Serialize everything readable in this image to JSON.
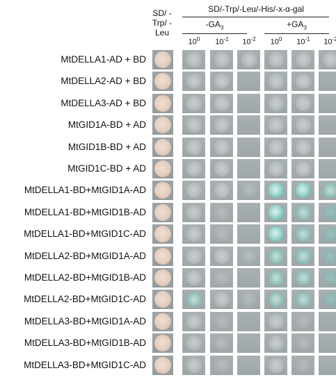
{
  "header": {
    "sd_title": "SD/ -Trp/ -Leu",
    "x_title": "SD/-Trp/-Leu/-His/-x-α-gal",
    "ga_minus": "-GA",
    "ga_plus": "+GA",
    "ga_sub": "3",
    "dilutions": [
      {
        "base": "10",
        "exp": "0"
      },
      {
        "base": "10",
        "exp": "-1"
      },
      {
        "base": "10",
        "exp": "-2"
      }
    ]
  },
  "rows": [
    {
      "label": "MtDELLA1-AD + BD",
      "growth": [
        "faint",
        "faint",
        "faint",
        "faint",
        "faint",
        "faint"
      ]
    },
    {
      "label": "MtDELLA2-AD + BD",
      "growth": [
        "faint",
        "faint",
        "none",
        "faint",
        "faint",
        "none"
      ]
    },
    {
      "label": "MtDELLA3-AD + BD",
      "growth": [
        "faint",
        "faint",
        "none",
        "faint",
        "faint",
        "none"
      ]
    },
    {
      "label": "MtGID1A-BD + AD",
      "growth": [
        "faint",
        "faint",
        "none",
        "faint",
        "faint",
        "none"
      ]
    },
    {
      "label": "MtGID1B-BD + AD",
      "growth": [
        "faint",
        "faint",
        "none",
        "faint",
        "faint",
        "none"
      ]
    },
    {
      "label": "MtGID1C-BD + AD",
      "growth": [
        "faint",
        "faint",
        "none",
        "faint",
        "faint",
        "none"
      ]
    },
    {
      "label": "MtDELLA1-BD+MtGID1A-AD",
      "growth": [
        "faint",
        "faint",
        "weak",
        "blue",
        "blue",
        "blue-mid"
      ]
    },
    {
      "label": "MtDELLA1-BD+MtGID1B-AD",
      "growth": [
        "faint",
        "weak",
        "none",
        "blue",
        "blue-mid",
        "blue-weak"
      ]
    },
    {
      "label": "MtDELLA1-BD+MtGID1C-AD",
      "growth": [
        "faint",
        "weak",
        "none",
        "blue",
        "blue-mid",
        "blue-weak"
      ]
    },
    {
      "label": "MtDELLA2-BD+MtGID1A-AD",
      "growth": [
        "faint",
        "faint",
        "weak",
        "blue-mid",
        "blue-mid",
        "blue-weak"
      ]
    },
    {
      "label": "MtDELLA2-BD+MtGID1B-AD",
      "growth": [
        "faint",
        "weak",
        "none",
        "blue-mid",
        "blue-mid",
        "blue-weak"
      ]
    },
    {
      "label": "MtDELLA2-BD+MtGID1C-AD",
      "growth": [
        "blue-mid",
        "faint",
        "weak",
        "blue-mid",
        "blue-mid",
        "blue-weak"
      ]
    },
    {
      "label": "MtDELLA3-BD+MtGID1A-AD",
      "growth": [
        "faint",
        "weak",
        "none",
        "faint",
        "weak",
        "none"
      ]
    },
    {
      "label": "MtDELLA3-BD+MtGID1B-AD",
      "growth": [
        "faint",
        "weak",
        "none",
        "faint",
        "weak",
        "none"
      ]
    },
    {
      "label": "MtDELLA3-BD+MtGID1C-AD",
      "growth": [
        "faint",
        "weak",
        "none",
        "faint",
        "weak",
        "none"
      ]
    }
  ]
}
